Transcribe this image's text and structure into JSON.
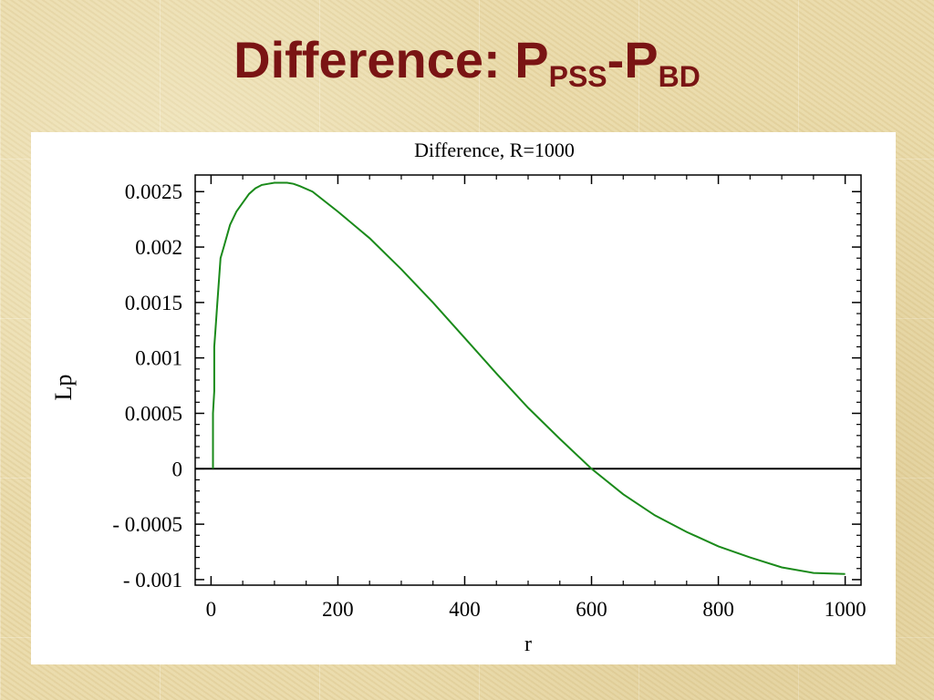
{
  "slide": {
    "title_main": "Difference: P",
    "title_sub1": "PSS",
    "title_dash": "-P",
    "title_sub2": "BD"
  },
  "chart_data": {
    "type": "line",
    "title": "Difference, R=1000",
    "xlabel": "r",
    "ylabel": "Lp",
    "xlim": [
      -25,
      1025
    ],
    "ylim": [
      -0.00105,
      0.00265
    ],
    "x_ticks": [
      0,
      200,
      400,
      600,
      800,
      1000
    ],
    "x_tick_labels": [
      "0",
      "200",
      "400",
      "600",
      "800",
      "1000"
    ],
    "y_ticks": [
      0.0025,
      0.002,
      0.0015,
      0.001,
      0.0005,
      0,
      -0.0005,
      -0.001
    ],
    "y_tick_labels": [
      "0.0025",
      "0.002",
      "0.0015",
      "0.001",
      "0.0005",
      "0",
      "- 0.0005",
      "- 0.001"
    ],
    "zero_line": true,
    "grid": false,
    "line_color": "#1a8a1a",
    "series": [
      {
        "x": [
          3,
          3,
          5,
          5,
          7,
          10,
          15,
          20,
          30,
          40,
          50,
          60,
          70,
          80,
          90,
          100,
          110,
          120,
          130,
          140,
          160,
          200,
          250,
          300,
          350,
          400,
          450,
          500,
          550,
          600,
          650,
          700,
          750,
          800,
          850,
          900,
          950,
          1000
        ],
        "y": [
          0,
          0.0005,
          0.0007,
          0.0011,
          0.00125,
          0.0015,
          0.0019,
          0.002,
          0.0022,
          0.00232,
          0.0024,
          0.00248,
          0.00253,
          0.00256,
          0.00257,
          0.00258,
          0.00258,
          0.00258,
          0.00257,
          0.00255,
          0.0025,
          0.00232,
          0.00208,
          0.0018,
          0.0015,
          0.00118,
          0.00086,
          0.00055,
          0.00027,
          0.0,
          -0.00023,
          -0.00042,
          -0.00057,
          -0.0007,
          -0.0008,
          -0.00089,
          -0.00094,
          -0.00095
        ]
      }
    ]
  }
}
